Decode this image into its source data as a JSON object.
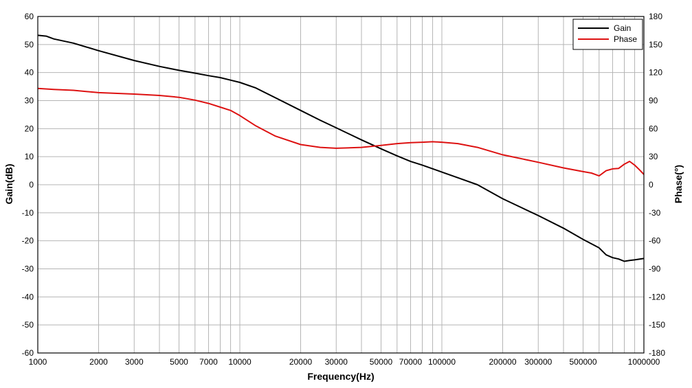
{
  "chart_data": {
    "type": "line",
    "title": "",
    "xlabel": "Frequency(Hz)",
    "ylabel": "Gain(dB)",
    "y2label": "Phase(°)",
    "x_scale": "log",
    "xlim": [
      1000,
      1000000
    ],
    "ylim": [
      -60,
      60
    ],
    "y2lim": [
      -180,
      180
    ],
    "grid": true,
    "legend_position": "top-right",
    "x_tick_labels": [
      "1000",
      "2000",
      "3000",
      "5000",
      "7000",
      "10000",
      "20000",
      "30000",
      "50000",
      "70000",
      "100000",
      "200000",
      "300000",
      "500000",
      "1000000"
    ],
    "x_tick_values": [
      1000,
      2000,
      3000,
      5000,
      7000,
      10000,
      20000,
      30000,
      50000,
      70000,
      100000,
      200000,
      300000,
      500000,
      1000000
    ],
    "y_tick_labels": [
      "60",
      "50",
      "40",
      "30",
      "20",
      "10",
      "0",
      "-10",
      "-20",
      "-30",
      "-40",
      "-50",
      "-60"
    ],
    "y_tick_values": [
      60,
      50,
      40,
      30,
      20,
      10,
      0,
      -10,
      -20,
      -30,
      -40,
      -50,
      -60
    ],
    "y2_tick_labels": [
      "180",
      "150",
      "120",
      "90",
      "60",
      "30",
      "0",
      "-30",
      "-60",
      "-90",
      "-120",
      "-150",
      "-180"
    ],
    "y2_tick_values": [
      180,
      150,
      120,
      90,
      60,
      30,
      0,
      -30,
      -60,
      -90,
      -120,
      -150,
      -180
    ],
    "series": [
      {
        "name": "Gain",
        "axis": "left",
        "color": "#000000",
        "x": [
          1000,
          1100,
          1200,
          1500,
          2000,
          3000,
          4000,
          5000,
          6000,
          7000,
          8000,
          9000,
          10000,
          12000,
          15000,
          20000,
          25000,
          30000,
          40000,
          50000,
          60000,
          70000,
          80000,
          100000,
          120000,
          150000,
          200000,
          250000,
          300000,
          400000,
          500000,
          600000,
          650000,
          700000,
          750000,
          800000,
          850000,
          900000,
          1000000
        ],
        "y": [
          53.3,
          53.0,
          52.0,
          50.5,
          47.8,
          44.3,
          42.2,
          40.8,
          39.8,
          38.9,
          38.2,
          37.3,
          36.5,
          34.5,
          31.0,
          26.5,
          23.0,
          20.3,
          16.0,
          12.8,
          10.3,
          8.3,
          7.0,
          4.5,
          2.5,
          0.0,
          -5.0,
          -8.3,
          -11.0,
          -15.5,
          -19.5,
          -22.5,
          -25.0,
          -26.0,
          -26.5,
          -27.3,
          -27.0,
          -26.8,
          -26.3
        ]
      },
      {
        "name": "Phase",
        "axis": "right",
        "color": "#dd1111",
        "x": [
          1000,
          1200,
          1500,
          2000,
          3000,
          4000,
          5000,
          6000,
          7000,
          8000,
          9000,
          10000,
          12000,
          15000,
          20000,
          25000,
          30000,
          40000,
          50000,
          60000,
          70000,
          80000,
          90000,
          100000,
          120000,
          150000,
          200000,
          300000,
          400000,
          500000,
          550000,
          600000,
          650000,
          700000,
          750000,
          800000,
          850000,
          900000,
          950000,
          1000000
        ],
        "y": [
          103.0,
          102.0,
          101.0,
          98.5,
          97.0,
          95.5,
          93.5,
          90.5,
          87.0,
          83.0,
          79.5,
          74.0,
          63.0,
          52.0,
          43.0,
          40.0,
          39.0,
          40.0,
          42.0,
          44.0,
          45.0,
          45.5,
          46.0,
          45.5,
          44.0,
          40.0,
          32.0,
          24.0,
          18.0,
          14.0,
          12.5,
          9.5,
          15.0,
          17.0,
          17.5,
          22.0,
          25.0,
          21.0,
          16.0,
          11.0
        ]
      }
    ]
  }
}
